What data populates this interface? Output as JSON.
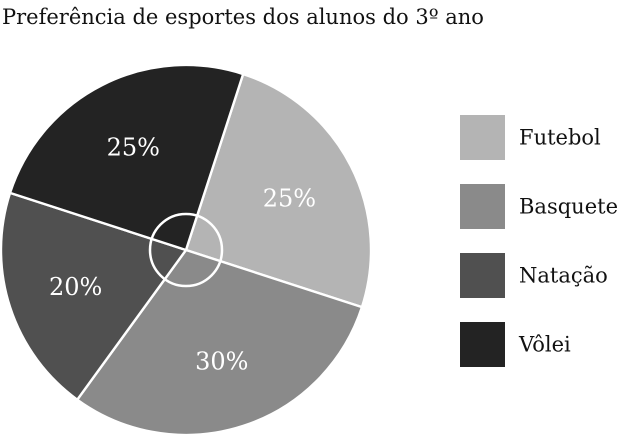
{
  "chart_data": {
    "type": "pie",
    "title": "Preferência de esportes dos alunos do 3º ano",
    "categories": [
      "Futebol",
      "Basquete",
      "Natação",
      "Vôlei"
    ],
    "values": [
      25,
      30,
      20,
      25
    ],
    "value_labels": [
      "25%",
      "30%",
      "20%",
      "25%"
    ],
    "colors": [
      "#b4b4b4",
      "#8a8a8a",
      "#505050",
      "#232323"
    ],
    "legend_position": "right"
  }
}
